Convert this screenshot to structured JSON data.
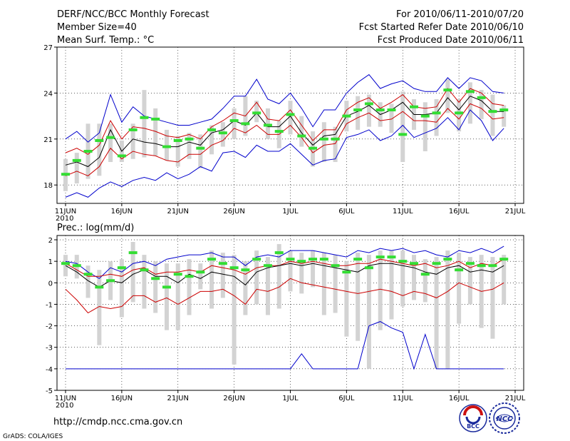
{
  "header": {
    "left": [
      "DERF/NCC/BCC Monthly Forecast",
      "Member Size=40",
      "Mean Surf. Temp.: °C"
    ],
    "right": [
      "For 2010/06/11-2010/07/20",
      "Fcst Started Refer Date 2010/06/10",
      "Fcst Produced Date 2010/06/11"
    ]
  },
  "footer": {
    "url": "http://cmdp.ncc.cma.gov.cn",
    "credit": "GrADS: COLA/IGES",
    "logo_bcc": "BCC",
    "logo_ncc": "NCC"
  },
  "colors": {
    "spread": "#d3d3d3",
    "envelope": "#0000cc",
    "sd_band": "#cc0000",
    "mean": "#000000",
    "median": "#33dd33"
  },
  "chart_data": [
    {
      "type": "line",
      "title": "Mean Surf. Temp.: °C",
      "ylim": [
        16.8,
        27
      ],
      "yticks": [
        18,
        21,
        24,
        27
      ],
      "xticks": [
        {
          "label": "11JUN",
          "day": 0
        },
        {
          "label": "16JUN",
          "day": 5
        },
        {
          "label": "21JUN",
          "day": 10
        },
        {
          "label": "26JUN",
          "day": 15
        },
        {
          "label": "1JUL",
          "day": 20
        },
        {
          "label": "6JUL",
          "day": 25
        },
        {
          "label": "11JUL",
          "day": 30
        },
        {
          "label": "16JUL",
          "day": 35
        },
        {
          "label": "21JUL",
          "day": 40
        }
      ],
      "year_label": "2010",
      "x": [
        0,
        1,
        2,
        3,
        4,
        5,
        6,
        7,
        8,
        9,
        10,
        11,
        12,
        13,
        14,
        15,
        16,
        17,
        18,
        19,
        20,
        21,
        22,
        23,
        24,
        25,
        26,
        27,
        28,
        29,
        30,
        31,
        32,
        33,
        34,
        35,
        36,
        37,
        38,
        39
      ],
      "series": [
        {
          "name": "max",
          "values": [
            21.0,
            21.5,
            20.8,
            21.4,
            23.9,
            22.1,
            23.1,
            22.5,
            22.3,
            22.1,
            21.9,
            21.9,
            22.1,
            22.3,
            23.0,
            23.8,
            23.8,
            24.9,
            23.6,
            23.3,
            24.0,
            23.0,
            21.8,
            22.9,
            22.9,
            24.0,
            24.7,
            25.2,
            24.3,
            24.6,
            24.8,
            24.3,
            24.1,
            24.1,
            25.0,
            24.3,
            25.0,
            24.8,
            24.1,
            24.0
          ]
        },
        {
          "name": "mean_plus_sd",
          "values": [
            20.1,
            20.4,
            20.0,
            20.6,
            22.2,
            21.0,
            21.8,
            21.7,
            21.5,
            21.2,
            21.1,
            21.3,
            21.0,
            21.8,
            22.2,
            22.7,
            22.5,
            23.4,
            22.3,
            22.2,
            22.9,
            21.9,
            20.9,
            21.6,
            21.6,
            22.9,
            23.4,
            23.7,
            23.0,
            23.4,
            23.9,
            23.1,
            23.0,
            23.1,
            24.3,
            23.4,
            24.3,
            24.0,
            23.3,
            23.2
          ]
        },
        {
          "name": "mean",
          "values": [
            19.3,
            19.5,
            19.2,
            19.8,
            21.6,
            20.2,
            21.0,
            20.8,
            20.7,
            20.5,
            20.5,
            20.8,
            20.6,
            21.4,
            21.6,
            22.2,
            21.9,
            22.7,
            21.8,
            21.8,
            22.5,
            21.4,
            20.6,
            21.2,
            21.3,
            22.5,
            22.8,
            23.2,
            22.6,
            22.9,
            23.4,
            22.6,
            22.6,
            22.7,
            23.7,
            22.9,
            23.8,
            23.5,
            22.8,
            22.8
          ]
        },
        {
          "name": "mean_minus_sd",
          "values": [
            18.6,
            18.9,
            18.6,
            19.2,
            20.4,
            19.7,
            20.2,
            20.0,
            19.9,
            19.6,
            19.5,
            20.0,
            20.0,
            20.6,
            20.9,
            21.7,
            21.4,
            21.9,
            21.3,
            21.3,
            21.9,
            21.1,
            20.1,
            20.6,
            20.7,
            22.0,
            22.4,
            22.7,
            22.2,
            22.3,
            22.8,
            22.2,
            22.2,
            22.1,
            23.0,
            22.3,
            23.3,
            23.0,
            22.3,
            22.4
          ]
        },
        {
          "name": "min",
          "values": [
            17.2,
            17.5,
            17.2,
            17.8,
            18.2,
            17.9,
            18.3,
            18.5,
            18.3,
            18.8,
            18.4,
            18.7,
            19.2,
            18.9,
            20.1,
            20.2,
            19.8,
            20.6,
            20.2,
            20.2,
            20.7,
            20.0,
            19.3,
            19.6,
            19.7,
            21.1,
            21.3,
            21.6,
            20.9,
            21.2,
            21.9,
            21.1,
            21.4,
            21.7,
            22.4,
            21.6,
            22.9,
            22.2,
            20.9,
            21.7
          ]
        },
        {
          "name": "median",
          "values": [
            18.7,
            19.6,
            20.2,
            20.9,
            21.1,
            19.9,
            21.6,
            22.4,
            22.3,
            20.5,
            20.9,
            21.0,
            20.4,
            21.6,
            21.4,
            22.2,
            22.0,
            22.7,
            21.9,
            21.5,
            22.6,
            21.2,
            20.4,
            21.0,
            21.0,
            22.5,
            22.9,
            23.3,
            22.9,
            22.9,
            21.3,
            23.1,
            22.5,
            22.7,
            24.2,
            22.7,
            24.1,
            23.7,
            22.8,
            22.9
          ]
        },
        {
          "name": "spread_low",
          "values": [
            17.6,
            18.1,
            18.4,
            18.6,
            19.5,
            19.5,
            19.7,
            19.8,
            19.9,
            19.6,
            19.2,
            19.7,
            19.1,
            20.0,
            20.5,
            21.0,
            21.2,
            22.1,
            21.0,
            20.4,
            21.3,
            20.5,
            19.2,
            19.5,
            19.5,
            21.5,
            21.6,
            21.8,
            21.8,
            21.4,
            19.5,
            21.6,
            20.2,
            21.2,
            22.7,
            21.5,
            22.0,
            22.3,
            21.2,
            21.8
          ]
        },
        {
          "name": "spread_high",
          "values": [
            19.7,
            20.1,
            22.0,
            22.0,
            22.0,
            20.9,
            22.0,
            24.2,
            23.0,
            21.6,
            21.2,
            21.4,
            21.3,
            21.9,
            22.1,
            23.0,
            23.8,
            23.5,
            23.0,
            22.2,
            23.5,
            22.5,
            21.5,
            22.1,
            21.8,
            23.5,
            23.8,
            23.9,
            23.4,
            23.3,
            24.1,
            23.6,
            23.4,
            23.6,
            24.9,
            23.6,
            24.7,
            24.2,
            23.9,
            23.2
          ]
        }
      ]
    },
    {
      "type": "line",
      "title": "Prec.: log(mm/d)",
      "ylim": [
        -5,
        2.2
      ],
      "yticks": [
        -5,
        -4,
        -3,
        -2,
        -1,
        0,
        1,
        2
      ],
      "xticks": [
        {
          "label": "11JUN",
          "day": 0
        },
        {
          "label": "16JUN",
          "day": 5
        },
        {
          "label": "21JUN",
          "day": 10
        },
        {
          "label": "26JUN",
          "day": 15
        },
        {
          "label": "1JUL",
          "day": 20
        },
        {
          "label": "6JUL",
          "day": 25
        },
        {
          "label": "11JUL",
          "day": 30
        },
        {
          "label": "16JUL",
          "day": 35
        },
        {
          "label": "21JUL",
          "day": 40
        }
      ],
      "year_label": "2010",
      "x": [
        0,
        1,
        2,
        3,
        4,
        5,
        6,
        7,
        8,
        9,
        10,
        11,
        12,
        13,
        14,
        15,
        16,
        17,
        18,
        19,
        20,
        21,
        22,
        23,
        24,
        25,
        26,
        27,
        28,
        29,
        30,
        31,
        32,
        33,
        34,
        35,
        36,
        37,
        38,
        39
      ],
      "series": [
        {
          "name": "max",
          "values": [
            1.0,
            0.9,
            0.5,
            0.2,
            0.7,
            0.5,
            0.9,
            1.0,
            0.8,
            1.1,
            1.2,
            1.3,
            1.3,
            1.4,
            1.2,
            1.2,
            0.8,
            1.2,
            1.3,
            1.2,
            1.5,
            1.5,
            1.5,
            1.4,
            1.3,
            1.2,
            1.5,
            1.4,
            1.6,
            1.5,
            1.6,
            1.4,
            1.5,
            1.3,
            1.2,
            1.5,
            1.4,
            1.6,
            1.4,
            1.7
          ]
        },
        {
          "name": "mean_plus_sd",
          "values": [
            0.9,
            0.6,
            0.3,
            0.3,
            0.4,
            0.3,
            0.6,
            0.7,
            0.4,
            0.5,
            0.5,
            0.6,
            0.5,
            0.8,
            0.7,
            0.6,
            0.4,
            0.7,
            0.8,
            0.8,
            1.0,
            0.9,
            1.0,
            0.9,
            0.8,
            0.8,
            0.9,
            0.9,
            1.1,
            1.0,
            0.9,
            0.8,
            0.9,
            0.7,
            0.8,
            1.0,
            0.7,
            0.9,
            0.8,
            1.1
          ]
        },
        {
          "name": "mean",
          "values": [
            0.8,
            0.5,
            0.1,
            -0.2,
            0.1,
            0.0,
            0.4,
            0.6,
            0.3,
            0.3,
            0.0,
            0.4,
            0.2,
            0.5,
            0.4,
            0.3,
            -0.1,
            0.5,
            0.7,
            0.8,
            0.9,
            0.8,
            0.9,
            0.8,
            0.7,
            0.6,
            0.5,
            0.8,
            0.9,
            0.9,
            0.8,
            0.7,
            0.5,
            0.4,
            0.7,
            0.8,
            0.5,
            0.6,
            0.5,
            0.8
          ]
        },
        {
          "name": "mean_minus_sd",
          "values": [
            -0.3,
            -0.8,
            -1.4,
            -1.1,
            -1.2,
            -1.1,
            -0.6,
            -0.6,
            -0.9,
            -0.7,
            -1.0,
            -0.7,
            -0.4,
            -0.4,
            -0.3,
            -0.6,
            -1.0,
            -0.3,
            -0.4,
            -0.2,
            0.2,
            0.0,
            -0.1,
            -0.2,
            -0.3,
            -0.4,
            -0.5,
            -0.4,
            -0.3,
            -0.4,
            -0.6,
            -0.4,
            -0.5,
            -0.7,
            -0.4,
            0.0,
            -0.2,
            -0.4,
            -0.3,
            0.0
          ]
        },
        {
          "name": "min",
          "values": [
            -4.0,
            -4.0,
            -4.0,
            -4.0,
            -4.0,
            -4.0,
            -4.0,
            -4.0,
            -4.0,
            -4.0,
            -4.0,
            -4.0,
            -4.0,
            -4.0,
            -4.0,
            -4.0,
            -4.0,
            -4.0,
            -4.0,
            -4.0,
            -4.0,
            -3.3,
            -4.0,
            -4.0,
            -4.0,
            -4.0,
            -4.0,
            -2.0,
            -1.8,
            -2.1,
            -2.3,
            -4.0,
            -2.4,
            -4.0,
            -4.0,
            -4.0,
            -4.0,
            -4.0,
            -4.0,
            -4.0
          ]
        },
        {
          "name": "median",
          "values": [
            0.9,
            0.8,
            0.4,
            -0.2,
            0.1,
            0.7,
            1.4,
            0.6,
            0.2,
            -0.2,
            0.4,
            0.3,
            0.5,
            1.1,
            0.9,
            0.7,
            0.6,
            1.1,
            0.8,
            1.4,
            1.1,
            1.0,
            1.1,
            1.1,
            0.8,
            0.5,
            1.1,
            0.7,
            1.2,
            1.2,
            1.0,
            0.9,
            0.4,
            0.9,
            1.1,
            0.6,
            0.9,
            0.8,
            0.8,
            1.1
          ]
        },
        {
          "name": "spread_low",
          "values": [
            0.3,
            0.2,
            -0.7,
            -2.9,
            -0.8,
            -1.6,
            -0.9,
            -1.2,
            -1.4,
            -2.2,
            -2.2,
            -1.5,
            -0.3,
            -1.2,
            -0.7,
            -3.8,
            -1.5,
            -1.0,
            -1.5,
            -1.2,
            -0.4,
            -0.5,
            -0.2,
            -1.5,
            -1.4,
            -2.5,
            -2.7,
            -4.0,
            -2.2,
            -1.7,
            -1.1,
            -0.8,
            -0.9,
            -4.0,
            -4.0,
            -1.9,
            -1.0,
            -2.1,
            -2.6,
            -1.0
          ]
        },
        {
          "name": "spread_high",
          "values": [
            1.3,
            1.3,
            0.8,
            0.6,
            1.0,
            1.1,
            1.9,
            1.3,
            1.0,
            0.9,
            0.9,
            1.1,
            0.9,
            1.5,
            1.4,
            1.3,
            1.0,
            1.5,
            1.2,
            1.8,
            1.5,
            1.4,
            1.5,
            1.4,
            1.3,
            1.0,
            1.4,
            1.3,
            1.5,
            1.5,
            1.5,
            1.3,
            1.1,
            1.2,
            1.5,
            1.4,
            1.2,
            1.3,
            1.2,
            1.3
          ]
        }
      ]
    }
  ]
}
